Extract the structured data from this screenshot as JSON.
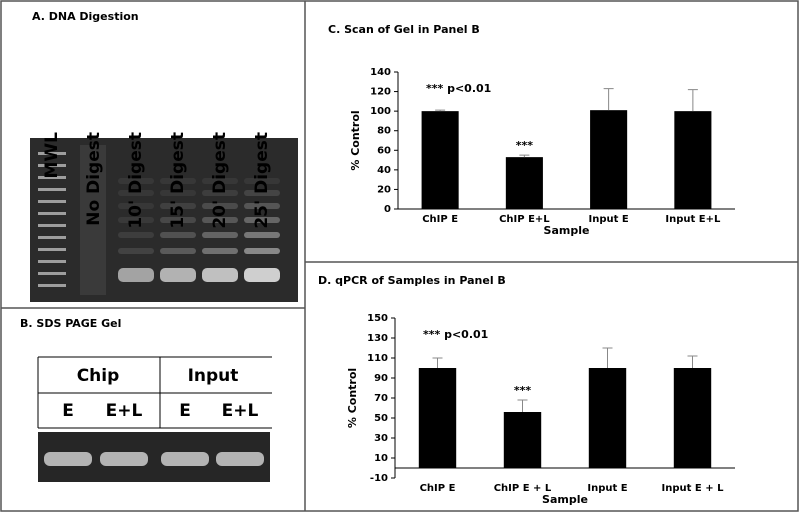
{
  "panel_a": {
    "title": "A. DNA Digestion",
    "lanes": [
      "MWL",
      "No Digest",
      "10' Digest",
      "15' Digest",
      "20' Digest",
      "25' Digest"
    ]
  },
  "panel_b": {
    "title": "B. SDS PAGE Gel",
    "groups": [
      "Chip",
      "Input"
    ],
    "lanes": [
      "E",
      "E+L",
      "E",
      "E+L"
    ]
  },
  "chart_data": [
    {
      "type": "bar",
      "title": "C. Scan of Gel in Panel B",
      "y_label": "% Control",
      "x_label": "Sample",
      "categories": [
        "ChIP E",
        "ChIP E+L",
        "Input E",
        "Input E+L"
      ],
      "values": [
        100,
        53,
        101,
        100
      ],
      "errors": [
        1,
        2,
        22,
        22
      ],
      "color": "#000000",
      "ylim": [
        0,
        140
      ],
      "yticks": [
        0,
        20,
        40,
        60,
        80,
        100,
        120,
        140
      ],
      "annotations": [
        "*** p<0.01",
        "***"
      ]
    },
    {
      "type": "bar",
      "title": "D. qPCR of Samples in Panel B",
      "y_label": "% Control",
      "x_label": "Sample",
      "categories": [
        "ChIP E",
        "ChIP E + L",
        "Input E",
        "Input E + L"
      ],
      "values": [
        100,
        56,
        100,
        100
      ],
      "errors": [
        10,
        12,
        20,
        12
      ],
      "color": "#000000",
      "ylim": [
        -10,
        150
      ],
      "yticks": [
        -10,
        10,
        30,
        50,
        70,
        90,
        110,
        130,
        150
      ],
      "annotations": [
        "*** p<0.01",
        "***"
      ]
    }
  ]
}
